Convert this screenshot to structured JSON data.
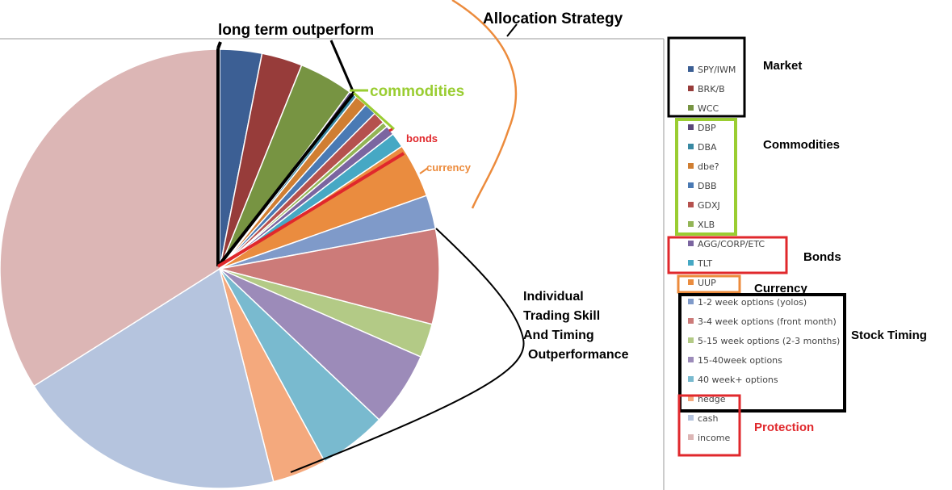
{
  "chart_data": {
    "type": "pie",
    "title": "",
    "start_angle_deg": 0,
    "direction": "clockwise",
    "legend_position": "right",
    "slices": [
      {
        "label": "SPY/IWM",
        "value": 3.1,
        "color": "#3c5f94"
      },
      {
        "label": "BRK/B",
        "value": 3.0,
        "color": "#973c3a"
      },
      {
        "label": "WCC",
        "value": 4.0,
        "color": "#779442"
      },
      {
        "label": "DBP",
        "value": 0.3,
        "color": "#5b477a"
      },
      {
        "label": "DBA",
        "value": 0.3,
        "color": "#3889a3"
      },
      {
        "label": "dbe?",
        "value": 0.9,
        "color": "#d07e32"
      },
      {
        "label": "DBB",
        "value": 0.9,
        "color": "#4a7ab4"
      },
      {
        "label": "GDXJ",
        "value": 0.9,
        "color": "#b5514e"
      },
      {
        "label": "XLB",
        "value": 0.4,
        "color": "#93b556"
      },
      {
        "label": "AGG/CORP/ETC",
        "value": 0.7,
        "color": "#7b65a0"
      },
      {
        "label": "TLT",
        "value": 1.1,
        "color": "#46a8c4"
      },
      {
        "label": "UUP",
        "value": 4.0,
        "color": "#ea8c3f"
      },
      {
        "label": "1-2 week options (yolos)",
        "value": 2.5,
        "color": "#7f9ac9"
      },
      {
        "label": "3-4 week options (front month)",
        "value": 7.0,
        "color": "#cc7b79"
      },
      {
        "label": "5-15 week options (2-3 months)",
        "value": 2.5,
        "color": "#b3ca86"
      },
      {
        "label": "15-40week options",
        "value": 5.5,
        "color": "#9c8bb9"
      },
      {
        "label": "40 week+ options",
        "value": 5.0,
        "color": "#79bacf"
      },
      {
        "label": "hedge",
        "value": 4.0,
        "color": "#f4a97d"
      },
      {
        "label": "cash",
        "value": 20.0,
        "color": "#b5c4de"
      },
      {
        "label": "income",
        "value": 34.0,
        "color": "#dcb6b5"
      }
    ]
  },
  "annotations": {
    "allocation_strategy": "Allocation Strategy",
    "long_term": "long term outperform",
    "commodities_green": "commodities",
    "bonds_red": "bonds",
    "currency_orange": "currency",
    "individual_1": "Individual",
    "individual_2": "Trading Skill",
    "individual_3": "And Timing",
    "individual_4": "Outperformance",
    "market": "Market",
    "commodities": "Commodities",
    "bonds": "Bonds",
    "currency": "Currency",
    "stock_timing": "Stock Timing",
    "protection": "Protection"
  },
  "colors": {
    "black": "#000000",
    "green": "#9acd32",
    "red": "#e0282c",
    "orange": "#ec8b3c"
  }
}
